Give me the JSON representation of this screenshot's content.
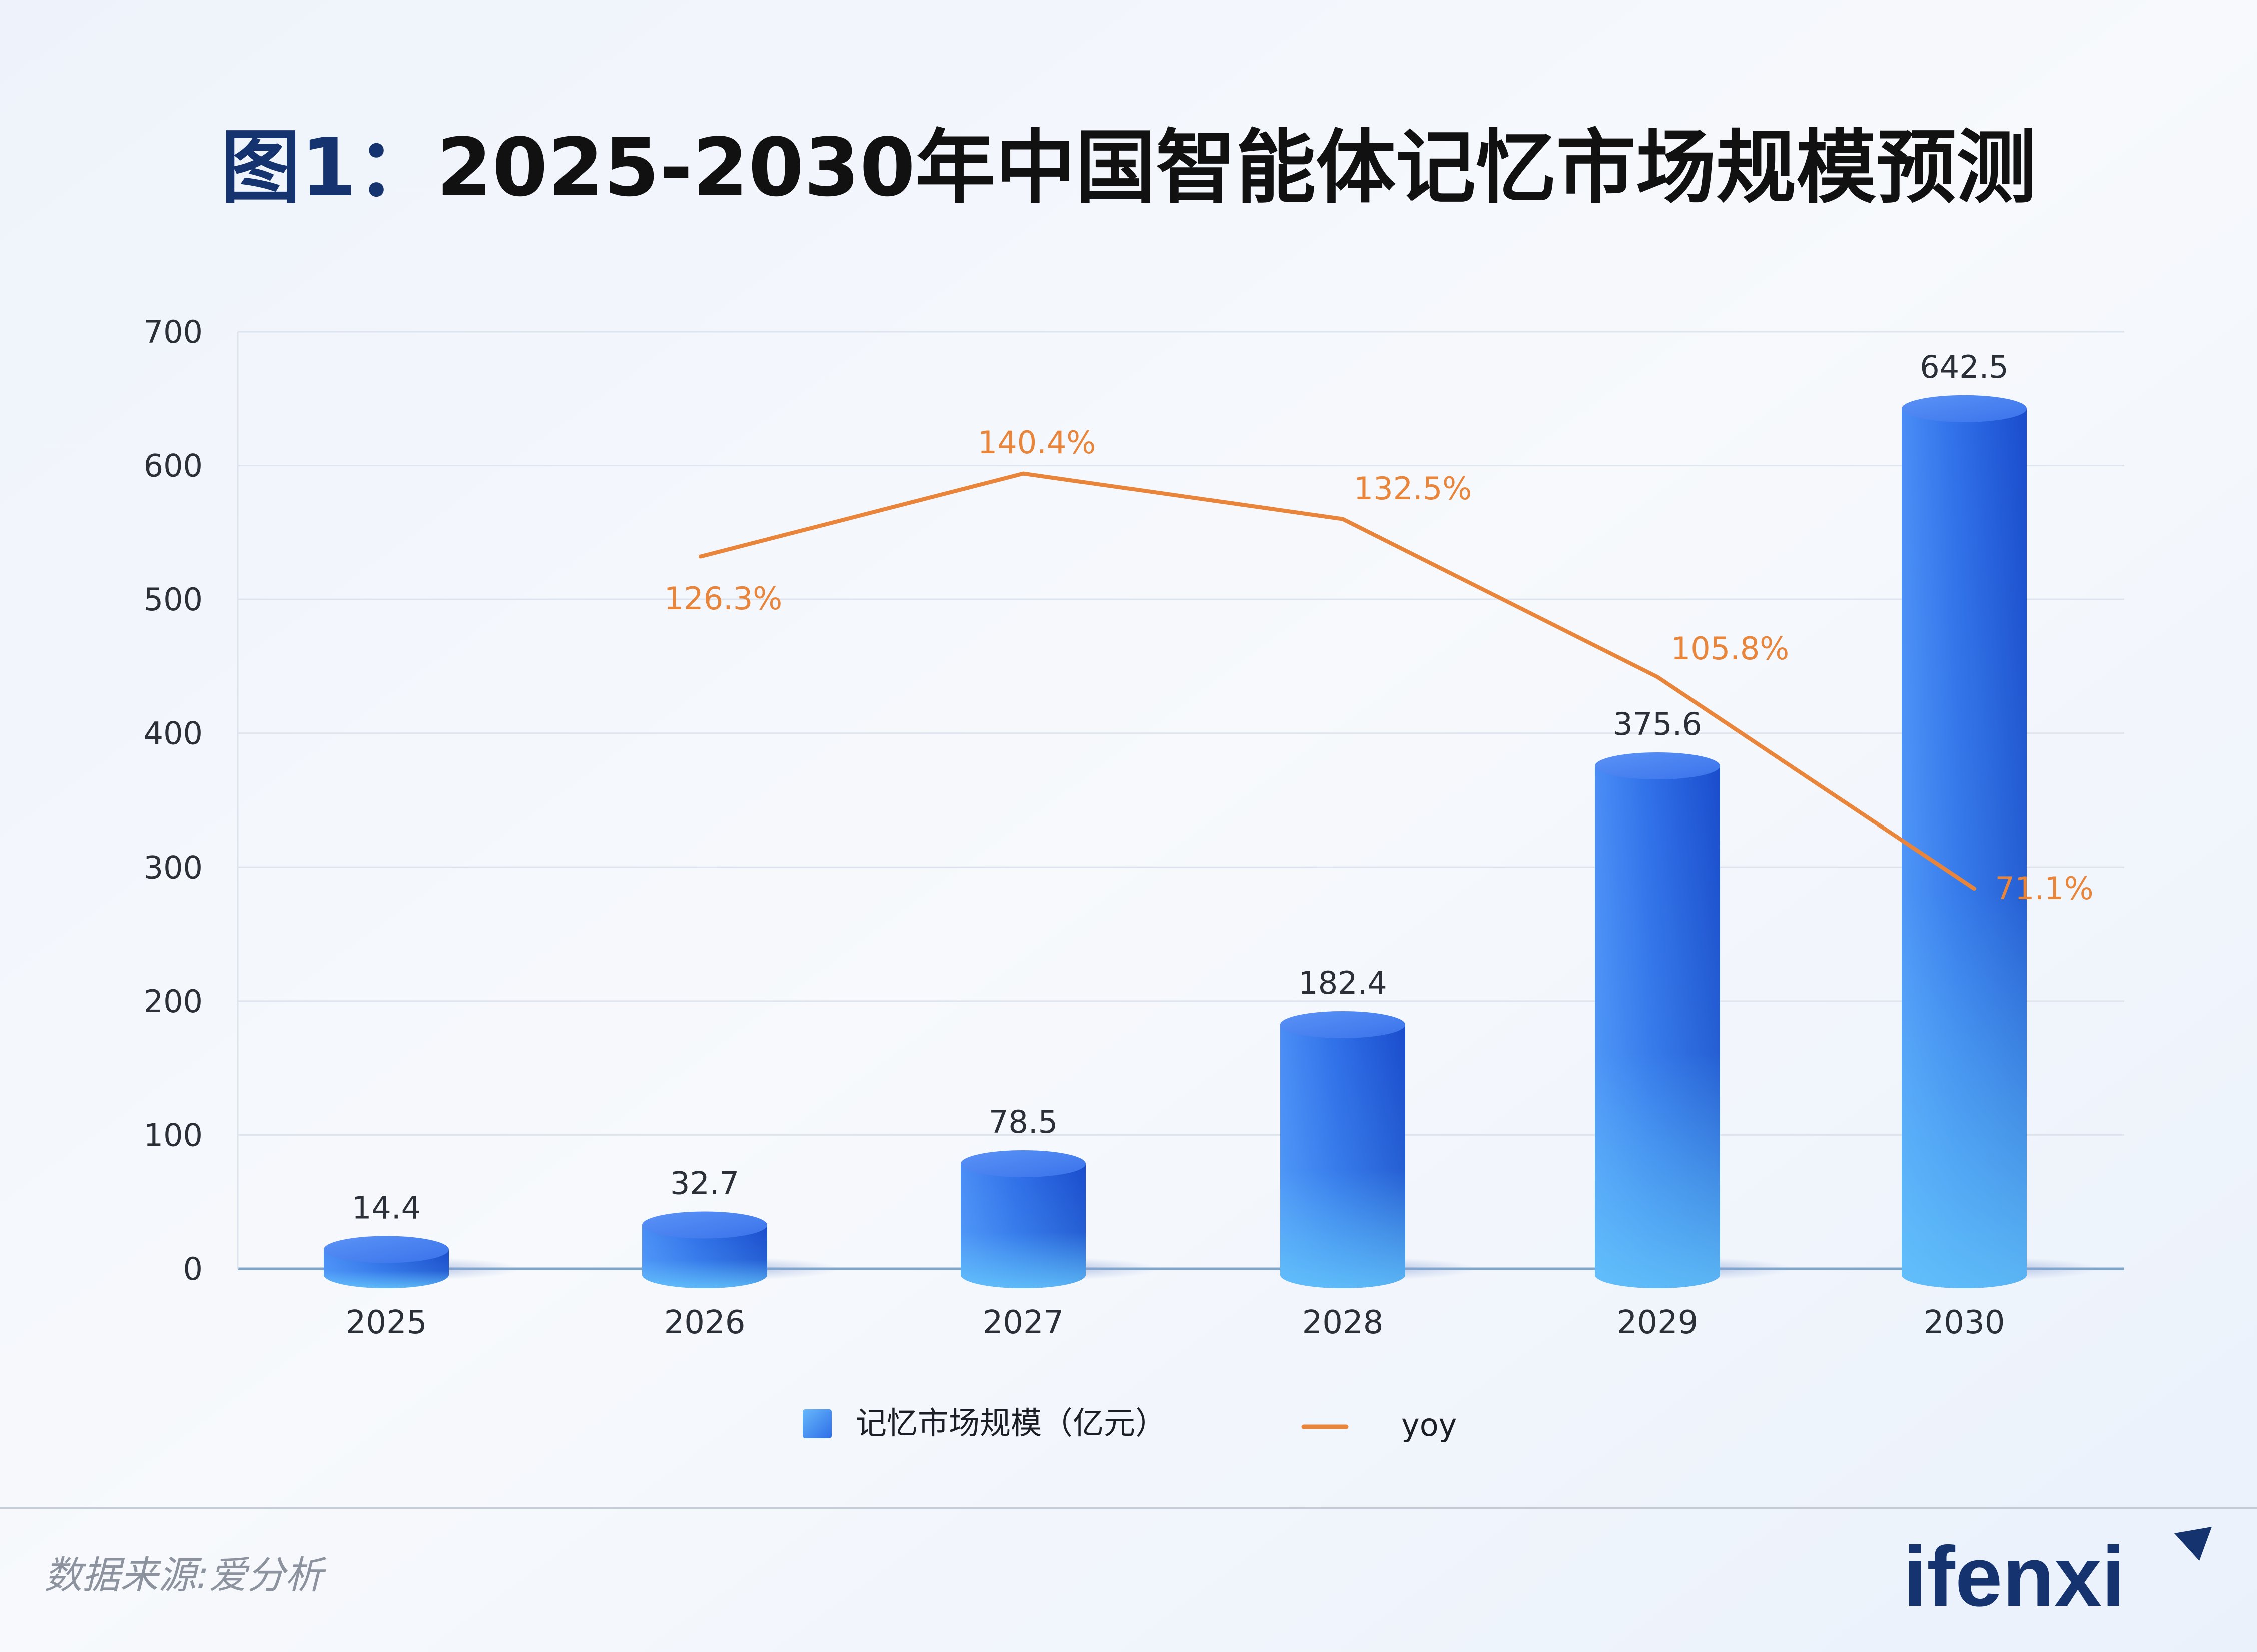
{
  "title": {
    "prefix": "图1",
    "colon": "：",
    "main": "2025-2030年中国智能体记忆市场规模预测"
  },
  "source": "数据来源:爱分析",
  "logo": "ifenxi",
  "colors": {
    "bar_top": "#4d86f5",
    "bar_light": "#66c8fb",
    "bar_mid": "#2f6ee8",
    "bar_dark": "#1c50cf",
    "line": "#e8853a",
    "title_prefix": "#15336e",
    "title": "#111111",
    "axis_text": "#2b2f38",
    "logo": "#15336e"
  },
  "chart_data": {
    "type": "bar",
    "categories": [
      "2025",
      "2026",
      "2027",
      "2028",
      "2029",
      "2030"
    ],
    "ylim": [
      0,
      700
    ],
    "yticks": [
      "0",
      "100",
      "200",
      "300",
      "400",
      "500",
      "600",
      "700"
    ],
    "grid": true,
    "legend_position": "bottom-center",
    "series": [
      {
        "name": "记忆市场规模（亿元）",
        "type": "bar",
        "values": [
          14.4,
          32.7,
          78.5,
          182.4,
          375.6,
          642.5
        ],
        "labels": [
          "14.4",
          "32.7",
          "78.5",
          "182.4",
          "375.6",
          "642.5"
        ]
      },
      {
        "name": "yoy",
        "type": "line",
        "values": [
          null,
          126.3,
          140.4,
          132.5,
          105.8,
          71.1
        ],
        "labels": [
          "",
          "126.3%",
          "140.4%",
          "132.5%",
          "105.8%",
          "71.1%"
        ],
        "plot_values": [
          null,
          532,
          594,
          560,
          442,
          284
        ]
      }
    ]
  }
}
